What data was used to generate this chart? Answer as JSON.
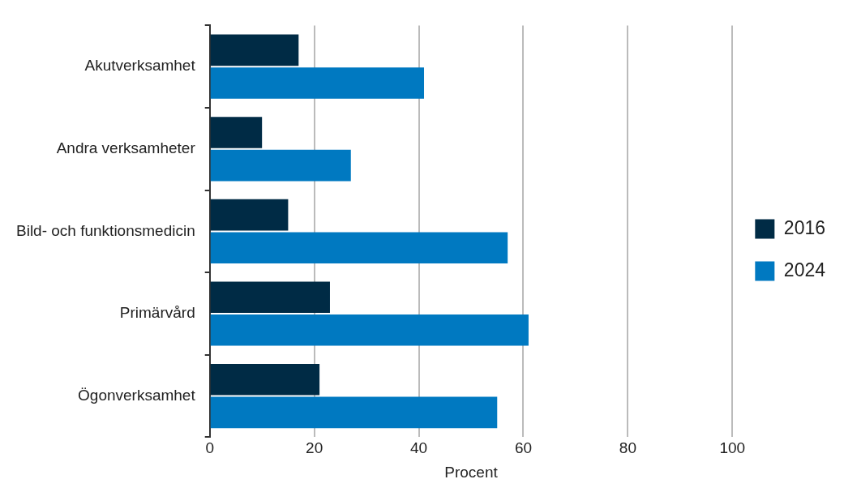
{
  "chart_data": {
    "type": "bar",
    "orientation": "horizontal",
    "xlabel": "Procent",
    "categories": [
      "Akutverksamhet",
      "Andra verksamheter",
      "Bild- och funktionsmedicin",
      "Primärvård",
      "Ögonverksamhet"
    ],
    "series": [
      {
        "name": "2016",
        "color": "#002b45",
        "values": [
          17,
          10,
          15,
          23,
          21
        ]
      },
      {
        "name": "2024",
        "color": "#0079c1",
        "values": [
          41,
          27,
          57,
          61,
          55
        ]
      }
    ],
    "xlim": [
      0,
      100
    ],
    "xticks": [
      0,
      20,
      40,
      60,
      80,
      100
    ],
    "grid": "x",
    "legend": "right"
  }
}
